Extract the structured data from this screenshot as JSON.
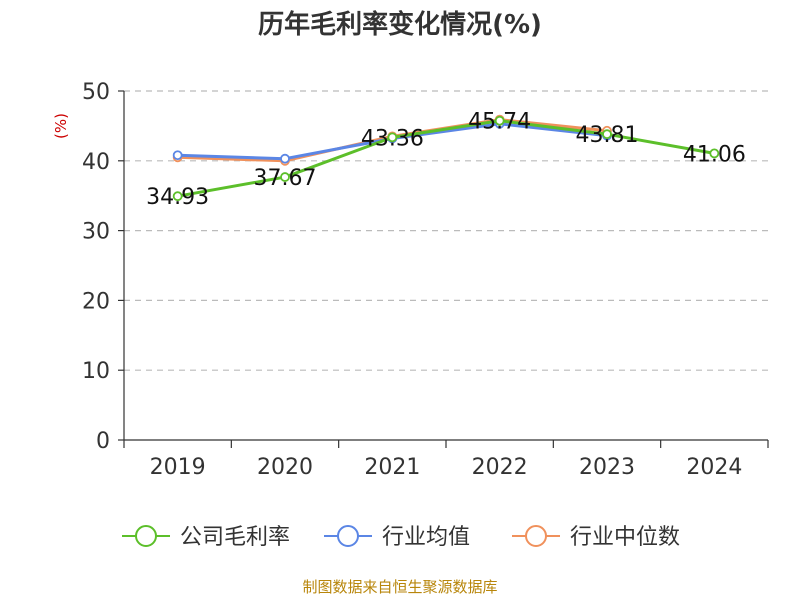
{
  "chart_data": {
    "type": "line",
    "title": "历年毛利率变化情况(%)",
    "ylabel": "(%)",
    "xlabel": "",
    "categories": [
      "2019",
      "2020",
      "2021",
      "2022",
      "2023",
      "2024"
    ],
    "ylim": [
      0,
      50
    ],
    "yticks": [
      0,
      10,
      20,
      30,
      40,
      50
    ],
    "grid": true,
    "legend_position": "bottom",
    "series": [
      {
        "name": "公司毛利率",
        "color": "#5cbf2a",
        "values": [
          34.93,
          37.67,
          43.36,
          45.74,
          43.81,
          41.06
        ],
        "labels": [
          "34.93",
          "37.67",
          "43.36",
          "45.74",
          "43.81",
          "41.06"
        ]
      },
      {
        "name": "行业均值",
        "color": "#5b86e5",
        "values": [
          40.8,
          40.3,
          43.2,
          45.3,
          43.6,
          null
        ]
      },
      {
        "name": "行业中位数",
        "color": "#f0915c",
        "values": [
          40.5,
          40.0,
          43.5,
          45.9,
          44.3,
          null
        ]
      }
    ]
  },
  "source": "制图数据来自恒生聚源数据库"
}
